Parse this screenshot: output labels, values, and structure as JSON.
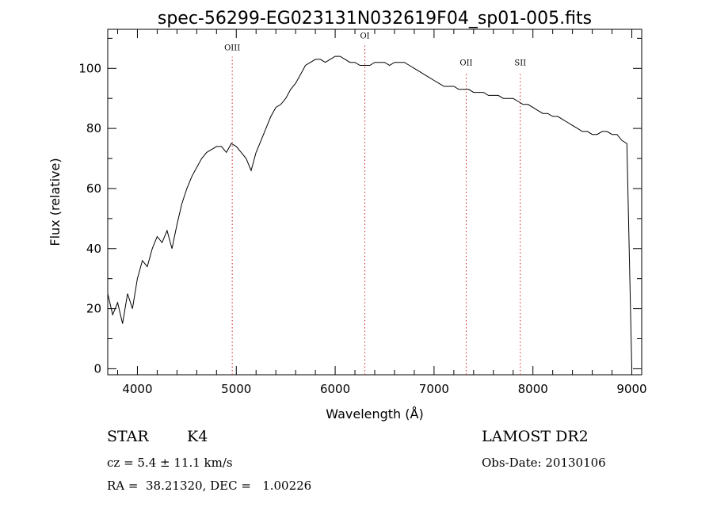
{
  "chart_data": {
    "type": "line",
    "title": "spec-56299-EG023131N032619F04_sp01-005.fits",
    "xlabel": "Wavelength (Å)",
    "ylabel": "Flux (relative)",
    "xlim": [
      3700,
      9100
    ],
    "ylim": [
      -2,
      113
    ],
    "grid": false,
    "x_ticks": [
      4000,
      5000,
      6000,
      7000,
      8000,
      9000
    ],
    "y_ticks": [
      0,
      20,
      40,
      60,
      80,
      100
    ],
    "x_tick_labels": [
      "4000",
      "5000",
      "6000",
      "7000",
      "8000",
      "9000"
    ],
    "y_tick_labels": [
      "0",
      "20",
      "40",
      "60",
      "80",
      "100"
    ],
    "series": [
      {
        "x": [
          3700,
          3750,
          3800,
          3850,
          3900,
          3950,
          4000,
          4050,
          4100,
          4150,
          4200,
          4250,
          4300,
          4350,
          4400,
          4450,
          4500,
          4550,
          4600,
          4650,
          4700,
          4750,
          4800,
          4850,
          4900,
          4950,
          5000,
          5050,
          5100,
          5150,
          5200,
          5250,
          5300,
          5350,
          5400,
          5450,
          5500,
          5550,
          5600,
          5650,
          5700,
          5750,
          5800,
          5850,
          5900,
          5950,
          6000,
          6050,
          6100,
          6150,
          6200,
          6250,
          6300,
          6350,
          6400,
          6450,
          6500,
          6550,
          6600,
          6650,
          6700,
          6750,
          6800,
          6850,
          6900,
          6950,
          7000,
          7050,
          7100,
          7150,
          7200,
          7250,
          7300,
          7350,
          7400,
          7450,
          7500,
          7550,
          7600,
          7650,
          7700,
          7750,
          7800,
          7850,
          7900,
          7950,
          8000,
          8050,
          8100,
          8150,
          8200,
          8250,
          8300,
          8350,
          8400,
          8450,
          8500,
          8550,
          8600,
          8650,
          8700,
          8750,
          8800,
          8850,
          8900,
          8950,
          9000
        ],
        "y": [
          25,
          18,
          22,
          15,
          25,
          20,
          30,
          36,
          34,
          40,
          44,
          42,
          46,
          40,
          48,
          55,
          60,
          64,
          67,
          70,
          72,
          73,
          74,
          74,
          72,
          75,
          74,
          72,
          70,
          66,
          72,
          76,
          80,
          84,
          87,
          88,
          90,
          93,
          95,
          98,
          101,
          102,
          103,
          103,
          102,
          103,
          104,
          104,
          103,
          102,
          102,
          101,
          101,
          101,
          102,
          102,
          102,
          101,
          102,
          102,
          102,
          101,
          100,
          99,
          98,
          97,
          96,
          95,
          94,
          94,
          94,
          93,
          93,
          93,
          92,
          92,
          92,
          91,
          91,
          91,
          90,
          90,
          90,
          89,
          88,
          88,
          87,
          86,
          85,
          85,
          84,
          84,
          83,
          82,
          81,
          80,
          79,
          79,
          78,
          78,
          79,
          79,
          78,
          78,
          76,
          75,
          0
        ]
      }
    ],
    "annotations": [
      {
        "label": "OIII",
        "x": 4959,
        "label_y": 106
      },
      {
        "label": "OI",
        "x": 6300,
        "label_y": 110
      },
      {
        "label": "OII",
        "x": 7325,
        "label_y": 101
      },
      {
        "label": "SII",
        "x": 7872,
        "label_y": 101
      }
    ]
  },
  "info": {
    "class": "STAR",
    "subclass": "K4",
    "cz": "cz = 5.4 ± 11.1 km/s",
    "coords": "RA =  38.21320, DEC =   1.00226",
    "survey": "LAMOST DR2",
    "obs_date": "Obs-Date: 20130106"
  }
}
